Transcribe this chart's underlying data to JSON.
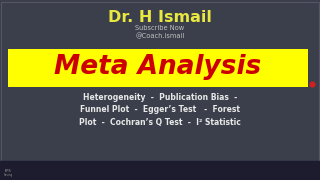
{
  "background_color": "#3a3f4b",
  "title_text": "Dr. H Ismail",
  "title_color": "#e8e840",
  "subscribe_text": "Subscribe Now",
  "subscribe_color": "#c0c0c0",
  "handle_text": "@Coach.ismail",
  "handle_color": "#c0c0c0",
  "banner_color": "#ffff00",
  "banner_text": "Meta Analysis",
  "banner_text_color": "#cc0000",
  "body_text_line1": "Heterogeneity  -  Publication Bias  -",
  "body_text_line2": "Funnel Plot  -  Egger’s Test   -  Forest",
  "body_text_line3": "Plot  -  Cochran’s Q Test  -  I² Statistic",
  "body_text_color": "#e8e8e8",
  "taskbar_color": "#1c1c2e",
  "dot_color": "#cc2222",
  "border_color": "#555566"
}
